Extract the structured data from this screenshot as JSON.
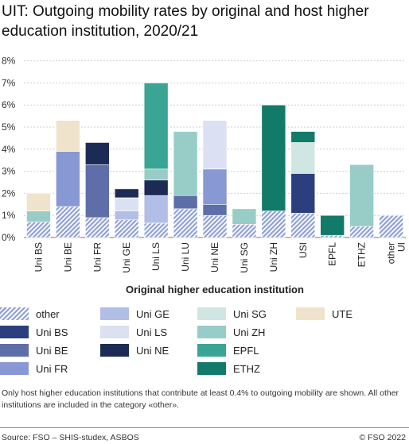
{
  "chart_data": {
    "type": "bar",
    "stacked": true,
    "title": "UIT: Outgoing mobility rates by original and host higher education institution, 2020/21",
    "xlabel": "Original higher education institution",
    "ylabel": "",
    "ylim": [
      0,
      8
    ],
    "yticks": [
      "0%",
      "1%",
      "2%",
      "3%",
      "4%",
      "5%",
      "6%",
      "7%",
      "8%"
    ],
    "grid": true,
    "legend_position": "bottom",
    "categories": [
      "Uni BS",
      "Uni BE",
      "Uni FR",
      "Uni GE",
      "Uni LS",
      "Uni LU",
      "Uni NE",
      "Uni SG",
      "Uni ZH",
      "USI",
      "EPFL",
      "ETHZ",
      "other UI"
    ],
    "series": [
      {
        "name": "other",
        "color": "#8fa0d8",
        "pattern": "hatch",
        "values": [
          0.7,
          1.4,
          0.9,
          0.8,
          0.65,
          1.3,
          1.0,
          0.6,
          1.2,
          1.1,
          0.1,
          0.5,
          1.0
        ]
      },
      {
        "name": "Uni BS",
        "color": "#2b3f7f",
        "values": [
          0,
          0,
          0,
          0,
          0,
          0,
          0,
          0,
          0,
          1.8,
          0,
          0,
          0
        ]
      },
      {
        "name": "Uni BE",
        "color": "#5d6ea8",
        "values": [
          0,
          0,
          2.4,
          0,
          0,
          0.6,
          0.5,
          0,
          0,
          0,
          0,
          0,
          0
        ]
      },
      {
        "name": "Uni FR",
        "color": "#8798d4",
        "values": [
          0,
          2.5,
          0,
          0,
          0,
          0,
          1.6,
          0,
          0,
          0,
          0,
          0,
          0
        ]
      },
      {
        "name": "Uni GE",
        "color": "#b1bee6",
        "values": [
          0,
          0,
          0,
          0.4,
          1.25,
          0,
          0,
          0,
          0,
          0,
          0,
          0,
          0
        ]
      },
      {
        "name": "Uni LS",
        "color": "#dbe0f3",
        "values": [
          0,
          0,
          0,
          0.6,
          0,
          0,
          2.2,
          0,
          0,
          0,
          0,
          0,
          0
        ]
      },
      {
        "name": "Uni NE",
        "color": "#1c2b55",
        "values": [
          0,
          0,
          1.0,
          0.4,
          0.7,
          0,
          0,
          0,
          0,
          0,
          0,
          0,
          0
        ]
      },
      {
        "name": "Uni SG",
        "color": "#cfe6e3",
        "values": [
          0,
          0,
          0,
          0,
          0,
          0,
          0,
          0,
          0,
          1.4,
          0,
          0,
          0
        ]
      },
      {
        "name": "Uni ZH",
        "color": "#97cdc6",
        "values": [
          0.5,
          0,
          0,
          0,
          0.5,
          2.9,
          0,
          0.7,
          0,
          0,
          0,
          2.8,
          0
        ]
      },
      {
        "name": "EPFL",
        "color": "#3aa595",
        "values": [
          0,
          0,
          0,
          0,
          3.9,
          0,
          0,
          0,
          0,
          0,
          0,
          0,
          0
        ]
      },
      {
        "name": "ETHZ",
        "color": "#127a68",
        "values": [
          0,
          0,
          0,
          0,
          0,
          0,
          0,
          0,
          4.8,
          0.5,
          0.9,
          0,
          0
        ]
      },
      {
        "name": "UTE",
        "color": "#efe3cc",
        "values": [
          0.8,
          1.4,
          0,
          0,
          0,
          0,
          0,
          0,
          0,
          0,
          0,
          0,
          0
        ]
      }
    ]
  },
  "note": "Only host higher education institutions that contribute at least 0.4% to outgoing mobility are shown. All other institutions are included in the category «other».",
  "source": "Source: FSO – SHIS-studex, ASBOS",
  "copyright": "© FSO 2022"
}
